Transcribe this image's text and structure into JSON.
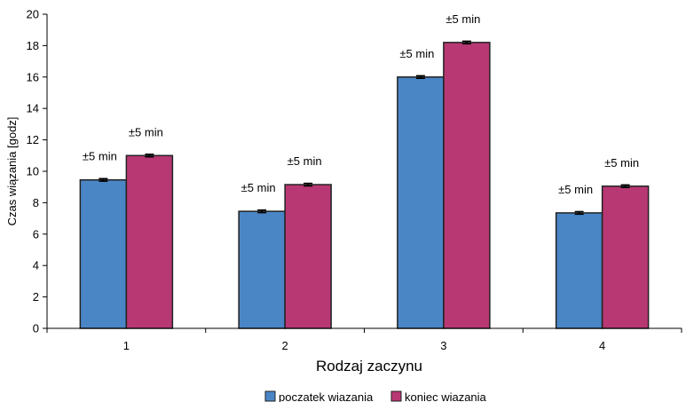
{
  "chart_data": {
    "type": "bar",
    "categories": [
      "1",
      "2",
      "3",
      "4"
    ],
    "series": [
      {
        "name": "poczatek wiazania",
        "color": "#4a86c6",
        "values": [
          9.45,
          7.45,
          16.0,
          7.35
        ],
        "errors": [
          0.083,
          0.083,
          0.083,
          0.083
        ],
        "error_labels": [
          "±5 min",
          "±5 min",
          "±5 min",
          "±5 min"
        ]
      },
      {
        "name": "koniec wiazania",
        "color": "#b83873",
        "values": [
          11.0,
          9.15,
          18.2,
          9.05
        ],
        "errors": [
          0.083,
          0.083,
          0.083,
          0.083
        ],
        "error_labels": [
          "±5 min",
          "±5 min",
          "±5 min",
          "±5 min"
        ]
      }
    ],
    "xlabel": "Rodzaj zaczynu",
    "ylabel": "Czas wiązania [godz]",
    "ylim": [
      0,
      20
    ],
    "yticks": [
      "0",
      "2",
      "4",
      "6",
      "8",
      "10",
      "12",
      "14",
      "16",
      "18",
      "20"
    ],
    "grid": false,
    "legend_position": "bottom"
  }
}
